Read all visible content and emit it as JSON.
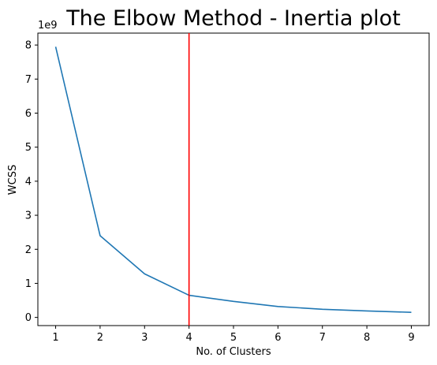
{
  "chart_data": {
    "type": "line",
    "title": "The Elbow Method - Inertia plot",
    "xlabel": "No. of Clusters",
    "ylabel": "WCSS",
    "y_offset_label": "1e9",
    "x": [
      1,
      2,
      3,
      4,
      5,
      6,
      7,
      8,
      9
    ],
    "series": [
      {
        "values": [
          7.95,
          2.4,
          1.28,
          0.65,
          0.47,
          0.32,
          0.24,
          0.19,
          0.15
        ],
        "color": "#1f77b4"
      }
    ],
    "vline": {
      "x": 4,
      "color": "#ff0000"
    },
    "xticks": [
      1,
      2,
      3,
      4,
      5,
      6,
      7,
      8,
      9
    ],
    "yticks": [
      0,
      1,
      2,
      3,
      4,
      5,
      6,
      7,
      8
    ],
    "xlim": [
      0.6,
      9.4
    ],
    "ylim": [
      -0.24,
      8.35
    ],
    "grid": false,
    "legend": "none"
  }
}
